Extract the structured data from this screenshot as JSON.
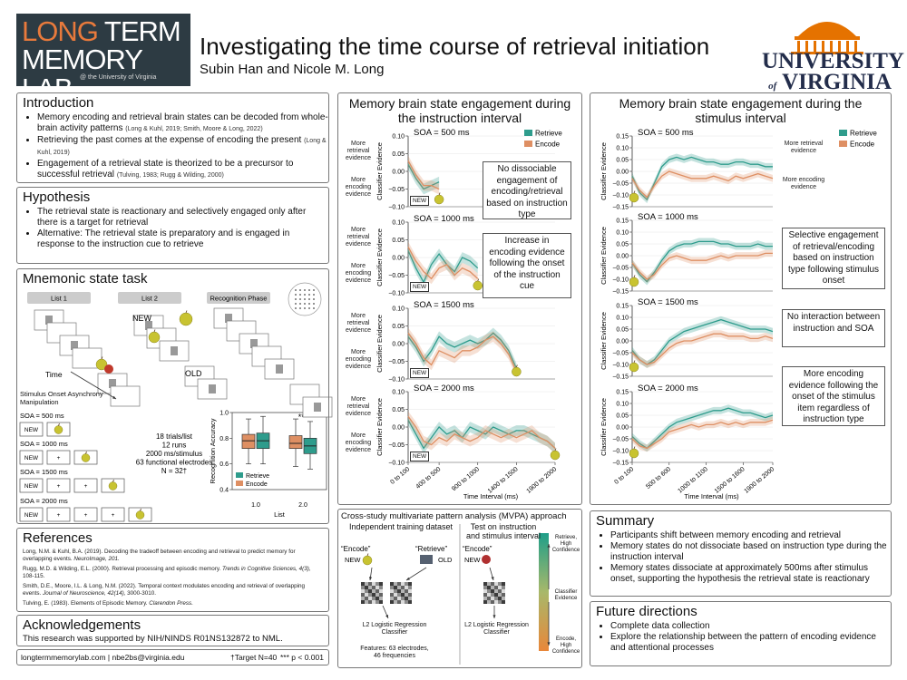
{
  "header": {
    "logo_a": "LONG",
    "logo_b": "TERM",
    "logo_c": "MEMORY LAB",
    "logo_sub": "@ the University of Virginia",
    "title": "Investigating the time course of retrieval initiation",
    "authors": "Subin Han and Nicole M. Long",
    "university": "UNIVERSITY",
    "university_of": "of",
    "university_name": "VIRGINIA"
  },
  "introduction": {
    "heading": "Introduction",
    "bullets": [
      {
        "text": "Memory encoding and retrieval brain states can be decoded from whole-brain activity patterns",
        "cite": "(Long & Kuhl, 2019; Smith, Moore & Long, 2022)"
      },
      {
        "text": "Retrieving the past comes at the expense of encoding the present",
        "cite": "(Long & Kuhl, 2019)"
      },
      {
        "text": "Engagement of a retrieval state is theorized to be a precursor to successful retrieval",
        "cite": "(Tulving, 1983; Rugg & Wilding, 2000)"
      }
    ]
  },
  "hypothesis": {
    "heading": "Hypothesis",
    "bullets": [
      "The retrieval state is reactionary and selectively engaged only after there is a target for retrieval",
      "Alternative: The retrieval state is preparatory and is engaged in response to the instruction cue to retrieve"
    ]
  },
  "task": {
    "heading": "Mnemonic state task",
    "phases": [
      "List 1",
      "List 2",
      "Recognition Phase"
    ],
    "new_label": "NEW",
    "old_label": "OLD",
    "time_label": "Time",
    "soa_heading": "Stimulus Onset Asynchrony Manipulation",
    "soa_rows": [
      {
        "label": "SOA = 500 ms",
        "cells": [
          "NEW"
        ]
      },
      {
        "label": "SOA = 1000 ms",
        "cells": [
          "NEW",
          "+"
        ]
      },
      {
        "label": "SOA = 1500 ms",
        "cells": [
          "NEW",
          "+",
          "+"
        ]
      },
      {
        "label": "SOA = 2000 ms",
        "cells": [
          "NEW",
          "+",
          "+",
          "+"
        ]
      }
    ],
    "details": [
      "18 trials/list",
      "12 runs",
      "2000 ms/stimulus",
      "63 functional electrodes",
      "N = 32†"
    ]
  },
  "references": {
    "heading": "References",
    "items": [
      {
        "text": "Long, N.M. & Kuhl, B.A. (2019). Decoding the tradeoff between encoding and retrieval to predict memory for overlapping events.",
        "journal": "NeuroImage, 201."
      },
      {
        "text": "Rugg, M.D. & Wilding, E.L. (2000). Retrieval processing and episodic memory.",
        "journal": "Trends in Cognitive Sciences, 4(3),",
        "pages": "108-115."
      },
      {
        "text": "Smith, D.E., Moore, I.L. & Long, N.M. (2022). Temporal context modulates encoding and retrieval of overlapping events.",
        "journal": "Journal of Neuroscience, 42(14),",
        "pages": "3000-3010."
      },
      {
        "text": "Tulving, E. (1983). Elements of Episodic Memory.",
        "journal": "Clarendon Press."
      }
    ]
  },
  "acknowledgements": {
    "heading": "Acknowledgements",
    "text": "This research was supported by NIH/NINDS R01NS132872 to NML."
  },
  "footer": {
    "contact": "longtermmemorylab.com | nbe2bs@virginia.edu",
    "note": "†Target N=40",
    "sig": "*** p < 0.001"
  },
  "mvpa": {
    "heading": "Cross-study multivariate pattern analysis (MVPA) approach",
    "train_heading": "Independent training dataset",
    "test_heading": "Test on instruction and stimulus interval",
    "train_labels": [
      "“Encode”",
      "“Retrieve”"
    ],
    "train_cues": [
      "NEW",
      "OLD"
    ],
    "test_label": "“Encode”",
    "test_cue": "NEW",
    "classifier": "L2 Logistic Regression Classifier",
    "features": "Features: 63 electrodes, 46 frequencies",
    "scale": [
      "Retrieve, High Confidence",
      "Classifier Evidence",
      "Encode, High Confidence"
    ]
  },
  "summary": {
    "heading": "Summary",
    "bullets": [
      "Participants shift between memory encoding and retrieval",
      "Memory states do not dissociate based on instruction type during the instruction interval",
      "Memory states dissociate at approximately 500ms after stimulus onset, supporting the hypothesis the retrieval state is reactionary"
    ]
  },
  "future": {
    "heading": "Future directions",
    "bullets": [
      "Complete data collection",
      "Explore the relationship between the pattern of encoding evidence and attentional processes"
    ]
  },
  "chart_data": [
    {
      "type": "line",
      "title": "Memory brain state engagement during the instruction interval",
      "xlabel": "Time Interval (ms)",
      "ylabel": "Classifier Evidence",
      "categories": [
        "0 to 100",
        null,
        null,
        null,
        "400 to 500",
        null,
        null,
        null,
        null,
        "900 to 1000",
        null,
        null,
        null,
        null,
        "1400 to 1500",
        null,
        null,
        null,
        null,
        "1900 to 2000"
      ],
      "ylim": [
        -0.1,
        0.1
      ],
      "yticks": [
        {
          "value": -0.1,
          "label": "−0.10"
        },
        {
          "value": -0.05,
          "label": "−0.05"
        },
        {
          "value": 0,
          "label": "0.00"
        },
        0.05,
        {
          "value": 0.1,
          "label": "0.10"
        }
      ],
      "legend": "upper right",
      "series_style": [
        {
          "name": "Retrieve",
          "color": "#2e9c8c"
        },
        {
          "name": "Encode",
          "color": "#de8f63"
        }
      ],
      "subplots": [
        {
          "label": "SOA = 500 ms",
          "annotations": [
            "More retrieval evidence",
            "More encoding evidence"
          ],
          "cue": "NEW",
          "note": "No dissociable engagement of encoding/retrieval based on instruction type",
          "series": [
            {
              "values": [
                0.02,
                -0.02,
                -0.05,
                -0.04,
                -0.03,
                null,
                null,
                null,
                null,
                null,
                null,
                null,
                null,
                null,
                null,
                null,
                null,
                null,
                null,
                null
              ],
              "error": 0.015
            },
            {
              "values": [
                0.03,
                -0.01,
                -0.04,
                -0.04,
                -0.05,
                null,
                null,
                null,
                null,
                null,
                null,
                null,
                null,
                null,
                null,
                null,
                null,
                null,
                null,
                null
              ],
              "error": 0.015
            }
          ]
        },
        {
          "label": "SOA = 1000 ms",
          "annotations": [
            "More retrieval evidence",
            "More encoding evidence"
          ],
          "cue": "NEW",
          "note": "Increase in encoding evidence following the onset of the instruction cue",
          "series": [
            {
              "values": [
                0.02,
                -0.03,
                -0.07,
                -0.02,
                0.01,
                -0.02,
                -0.04,
                0.0,
                -0.01,
                -0.03,
                null,
                null,
                null,
                null,
                null,
                null,
                null,
                null,
                null,
                null
              ],
              "error": 0.015
            },
            {
              "values": [
                0.03,
                -0.01,
                -0.04,
                -0.06,
                -0.03,
                -0.02,
                -0.05,
                -0.03,
                -0.04,
                -0.06,
                null,
                null,
                null,
                null,
                null,
                null,
                null,
                null,
                null,
                null
              ],
              "error": 0.015
            }
          ]
        },
        {
          "label": "SOA = 1500 ms",
          "annotations": [
            "More retrieval evidence",
            "More encoding evidence"
          ],
          "cue": "NEW",
          "series": [
            {
              "values": [
                0.02,
                -0.01,
                -0.05,
                -0.02,
                0.02,
                0.0,
                -0.01,
                0.0,
                0.01,
                0.0,
                0.01,
                0.03,
                0.01,
                -0.02,
                -0.07,
                null,
                null,
                null,
                null,
                null
              ],
              "error": 0.015
            },
            {
              "values": [
                0.03,
                0.0,
                -0.04,
                -0.06,
                -0.02,
                -0.03,
                -0.04,
                -0.02,
                -0.02,
                -0.01,
                0.01,
                0.02,
                0.0,
                -0.03,
                -0.08,
                null,
                null,
                null,
                null,
                null
              ],
              "error": 0.015
            }
          ]
        },
        {
          "label": "SOA = 2000 ms",
          "annotations": [
            "More retrieval evidence",
            "More encoding evidence"
          ],
          "cue": "NEW",
          "series": [
            {
              "values": [
                0.02,
                -0.02,
                -0.06,
                -0.03,
                0.0,
                -0.02,
                -0.01,
                -0.03,
                0.0,
                -0.01,
                -0.02,
                0.0,
                -0.01,
                -0.02,
                -0.01,
                -0.01,
                -0.02,
                -0.03,
                -0.04,
                -0.06
              ],
              "error": 0.015
            },
            {
              "values": [
                0.03,
                0.0,
                -0.04,
                -0.05,
                -0.03,
                -0.04,
                -0.02,
                -0.03,
                -0.04,
                -0.03,
                -0.01,
                -0.02,
                -0.03,
                -0.02,
                -0.03,
                -0.02,
                -0.01,
                -0.03,
                -0.04,
                -0.06
              ],
              "error": 0.015
            }
          ]
        }
      ]
    },
    {
      "type": "line",
      "title": "Memory brain state engagement during the stimulus interval",
      "xlabel": "Time Interval (ms)",
      "ylabel": "Classifier Evidence",
      "categories": [
        "0 to 100",
        null,
        null,
        null,
        null,
        "500 to 600",
        null,
        null,
        null,
        null,
        "1000 to 1100",
        null,
        null,
        null,
        null,
        "1500 to 1600",
        null,
        null,
        null,
        "1900 to 2000"
      ],
      "ylim": [
        -0.15,
        0.15
      ],
      "yticks": [
        {
          "value": -0.15,
          "label": "−0.15"
        },
        {
          "value": -0.1,
          "label": "−0.10"
        },
        {
          "value": -0.05,
          "label": "−0.05"
        },
        {
          "value": 0,
          "label": "0.00"
        },
        0.05,
        {
          "value": 0.1,
          "label": "0.10"
        },
        0.15
      ],
      "legend": "upper right",
      "series_style": [
        {
          "name": "Retrieve",
          "color": "#2e9c8c"
        },
        {
          "name": "Encode",
          "color": "#de8f63"
        }
      ],
      "subplots": [
        {
          "label": "SOA = 500 ms",
          "annotations": [
            "More retrieval evidence",
            "More encoding evidence"
          ],
          "series": [
            {
              "values": [
                -0.02,
                -0.09,
                -0.12,
                -0.05,
                0.02,
                0.05,
                0.06,
                0.05,
                0.06,
                0.05,
                0.04,
                0.04,
                0.03,
                0.03,
                0.04,
                0.04,
                0.03,
                0.03,
                0.02,
                0.02
              ],
              "error": 0.015
            },
            {
              "values": [
                -0.03,
                -0.08,
                -0.11,
                -0.06,
                -0.02,
                0.0,
                -0.01,
                -0.02,
                -0.03,
                -0.03,
                -0.03,
                -0.02,
                -0.03,
                -0.04,
                -0.02,
                -0.03,
                -0.02,
                -0.01,
                -0.02,
                -0.03
              ],
              "error": 0.015
            }
          ]
        },
        {
          "label": "SOA = 1000 ms",
          "note": "Selective engagement of retrieval/encoding based on instruction type following stimulus onset",
          "series": [
            {
              "values": [
                -0.03,
                -0.08,
                -0.11,
                -0.07,
                -0.02,
                0.02,
                0.04,
                0.05,
                0.05,
                0.06,
                0.06,
                0.06,
                0.05,
                0.05,
                0.04,
                0.04,
                0.04,
                0.05,
                0.04,
                0.04
              ],
              "error": 0.015
            },
            {
              "values": [
                -0.03,
                -0.07,
                -0.1,
                -0.08,
                -0.04,
                -0.01,
                0.0,
                -0.01,
                -0.02,
                -0.02,
                -0.02,
                -0.01,
                0.0,
                -0.01,
                0.0,
                0.0,
                0.0,
                0.0,
                0.01,
                0.01
              ],
              "error": 0.015
            }
          ]
        },
        {
          "label": "SOA = 1500 ms",
          "note": "No interaction between instruction and SOA",
          "series": [
            {
              "values": [
                -0.04,
                -0.08,
                -0.1,
                -0.08,
                -0.04,
                0.0,
                0.02,
                0.04,
                0.05,
                0.06,
                0.07,
                0.08,
                0.09,
                0.08,
                0.07,
                0.06,
                0.05,
                0.05,
                0.05,
                0.04
              ],
              "error": 0.015
            },
            {
              "values": [
                -0.05,
                -0.08,
                -0.1,
                -0.09,
                -0.06,
                -0.03,
                -0.01,
                0.0,
                0.0,
                0.01,
                0.02,
                0.03,
                0.03,
                0.02,
                0.02,
                0.02,
                0.01,
                0.01,
                0.02,
                0.01
              ],
              "error": 0.015
            }
          ]
        },
        {
          "label": "SOA = 2000 ms",
          "note": "More encoding evidence following the onset of the stimulus item regardless of instruction type",
          "series": [
            {
              "values": [
                -0.04,
                -0.07,
                -0.09,
                -0.06,
                -0.03,
                0.0,
                0.02,
                0.03,
                0.04,
                0.05,
                0.06,
                0.07,
                0.07,
                0.08,
                0.07,
                0.06,
                0.06,
                0.05,
                0.04,
                0.05
              ],
              "error": 0.015
            },
            {
              "values": [
                -0.05,
                -0.08,
                -0.09,
                -0.07,
                -0.05,
                -0.02,
                -0.01,
                0.0,
                0.01,
                0.0,
                0.01,
                0.01,
                0.02,
                0.01,
                0.02,
                0.01,
                0.02,
                0.02,
                0.02,
                0.03
              ],
              "error": 0.015
            }
          ]
        }
      ]
    },
    {
      "type": "box",
      "xlabel": "List",
      "ylabel": "Recognition Accuracy",
      "categories": [
        "1.0",
        "2.0"
      ],
      "ylim": [
        0.4,
        1.0
      ],
      "yticks": [
        0.4,
        0.6,
        0.8,
        {
          "value": 1.0,
          "label": "1.0"
        }
      ],
      "legend": "lower left",
      "annotation": "***",
      "series": [
        {
          "name": "Retrieve",
          "color": "#2e9c8c",
          "boxes": [
            [
              0.6,
              0.72,
              0.78,
              0.84,
              0.97
            ],
            [
              0.56,
              0.68,
              0.74,
              0.8,
              0.93
            ]
          ]
        },
        {
          "name": "Encode",
          "color": "#de8f63",
          "boxes": [
            [
              0.6,
              0.72,
              0.78,
              0.83,
              0.95
            ],
            [
              0.58,
              0.72,
              0.76,
              0.82,
              0.95
            ]
          ]
        }
      ]
    }
  ]
}
